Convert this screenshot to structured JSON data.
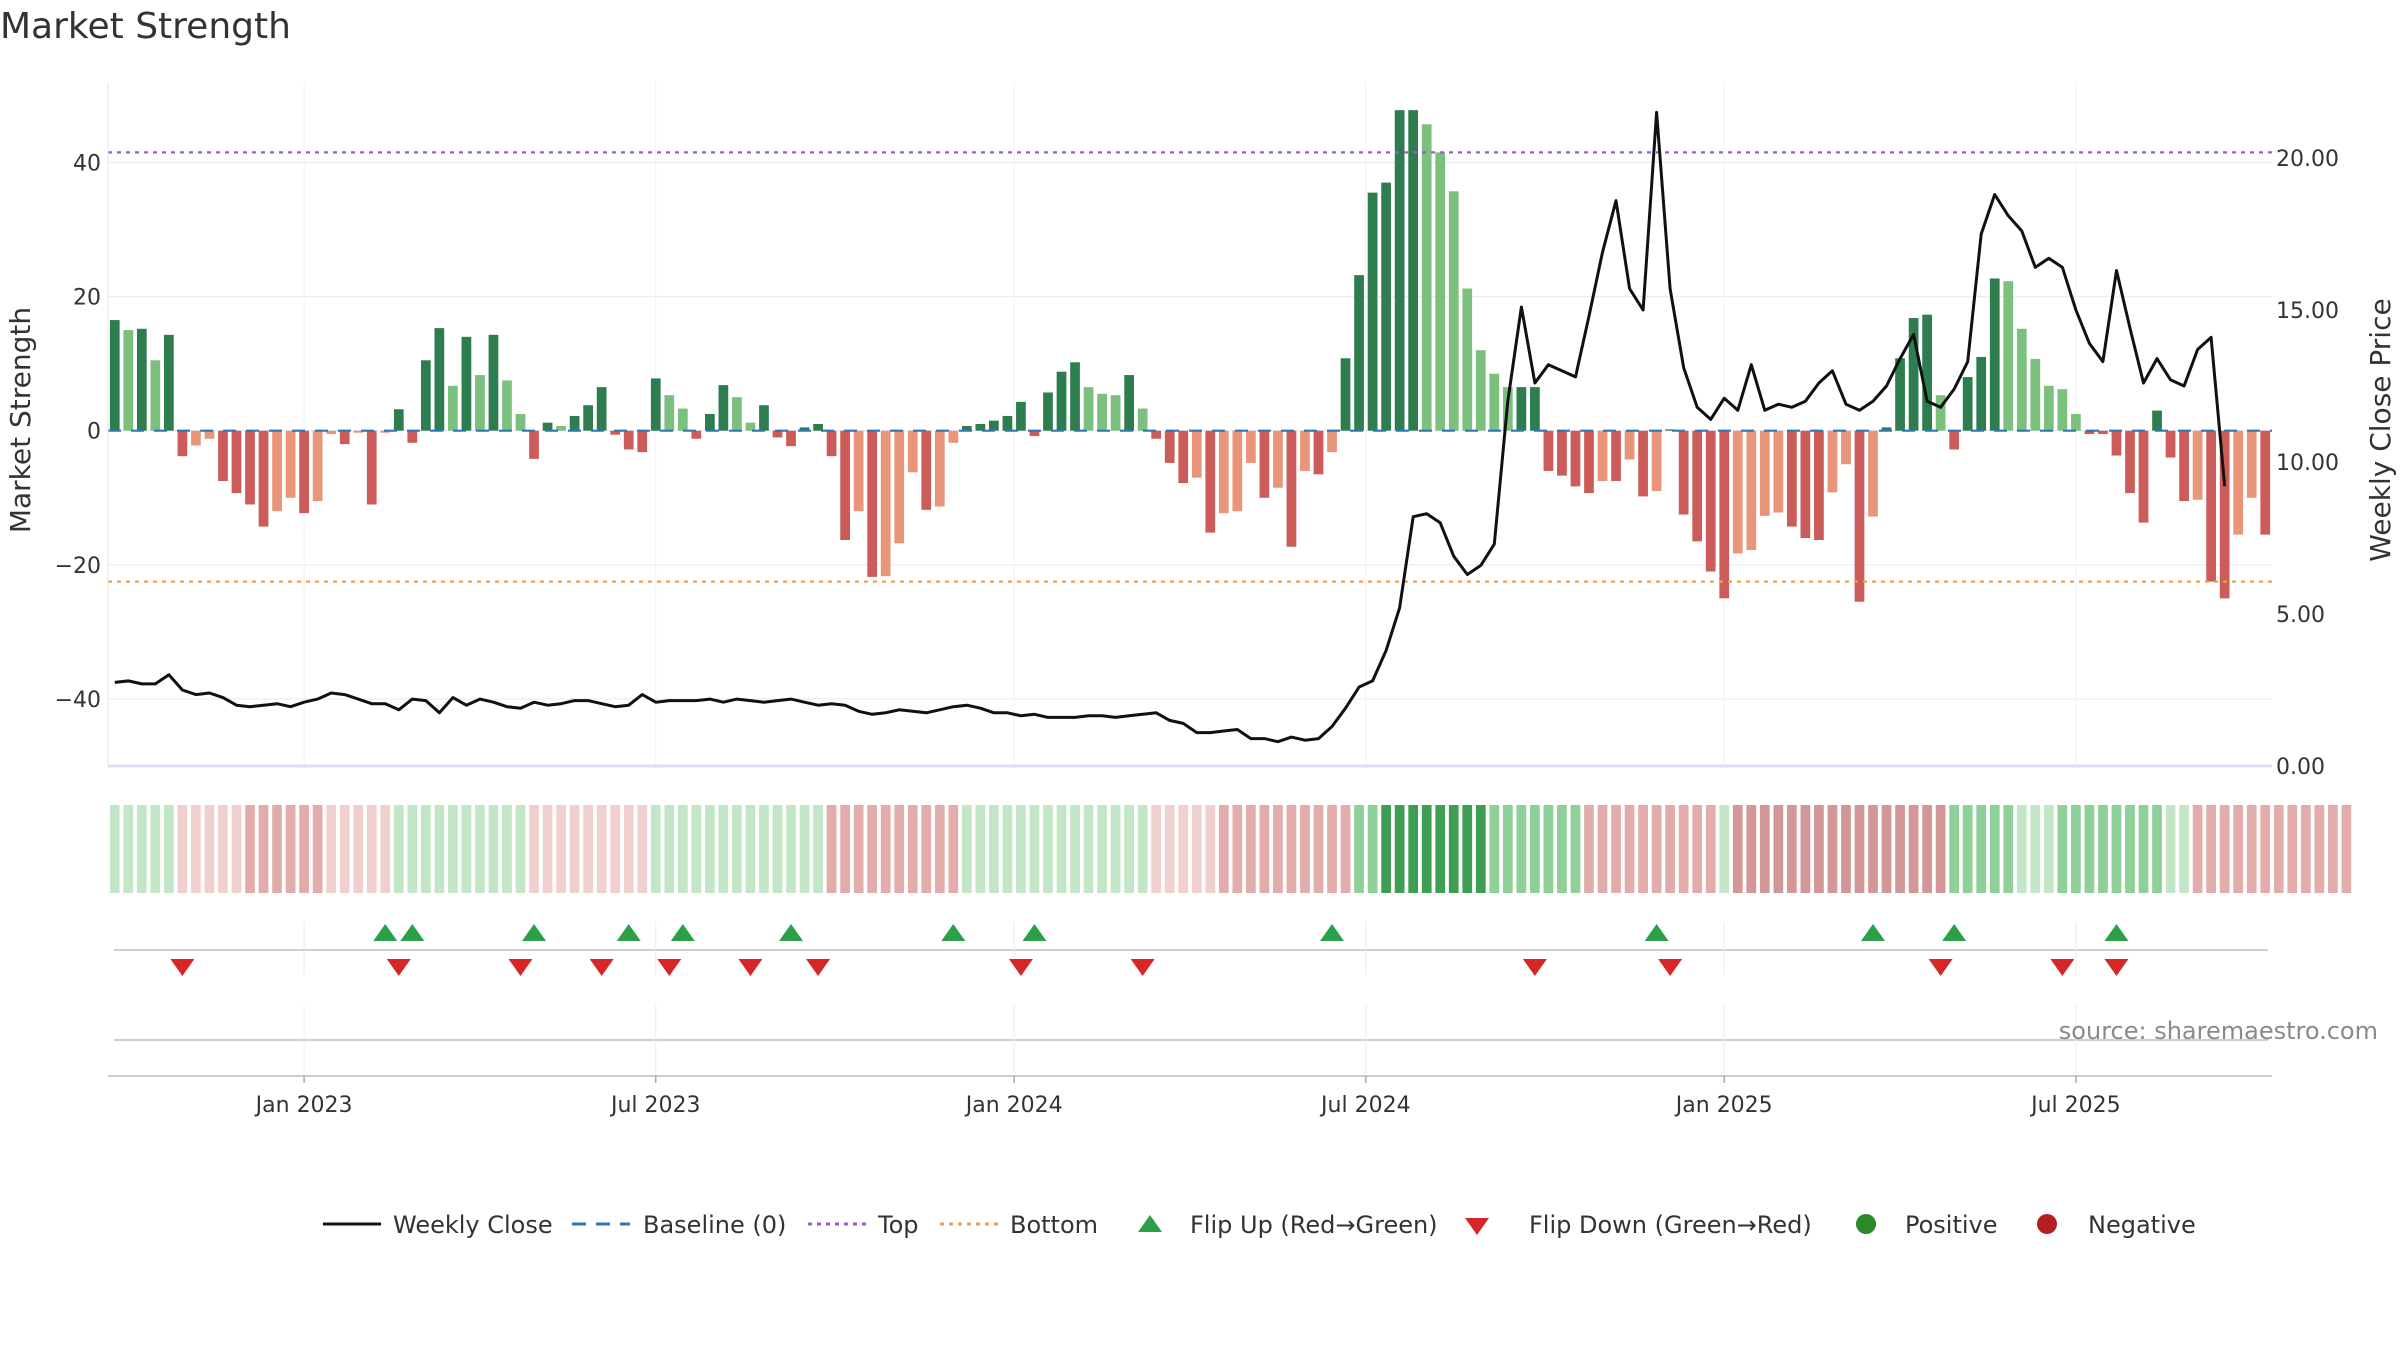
{
  "chart_data": {
    "type": "bar",
    "title": "Market Strength",
    "source": "source: sharemaestro.com",
    "ylabel_left": "Market Strength",
    "ylabel_right": "Weekly Close Price",
    "ylim_left": [
      -50,
      52
    ],
    "ylim_right": [
      0,
      22.5
    ],
    "yticks_left": [
      {
        "v": 40,
        "label": "40"
      },
      {
        "v": 20,
        "label": "20"
      },
      {
        "v": 0,
        "label": "0"
      },
      {
        "v": -20,
        "label": "−20"
      },
      {
        "v": -40,
        "label": "−40"
      }
    ],
    "yticks_right": [
      {
        "v": 20,
        "label": "20.00"
      },
      {
        "v": 15,
        "label": "15.00"
      },
      {
        "v": 10,
        "label": "10.00"
      },
      {
        "v": 5,
        "label": "5.00"
      },
      {
        "v": 0,
        "label": "0.00"
      }
    ],
    "xticks": [
      {
        "i": 14,
        "label": "Jan 2023"
      },
      {
        "i": 40,
        "label": "Jul 2023"
      },
      {
        "i": 66.5,
        "label": "Jan 2024"
      },
      {
        "i": 92.5,
        "label": "Jul 2024"
      },
      {
        "i": 119,
        "label": "Jan 2025"
      },
      {
        "i": 145,
        "label": "Jul 2025"
      }
    ],
    "top_line": 41.5,
    "bottom_line": -22.5,
    "strength": [
      16.5,
      15,
      15.2,
      10.5,
      14.3,
      -3.8,
      -2.2,
      -1.2,
      -7.5,
      -9.3,
      -11,
      -14.3,
      -12,
      -10,
      -12.3,
      -10.5,
      -0.5,
      -2,
      -0.3,
      -11,
      -0.3,
      3.2,
      -1.8,
      10.5,
      15.3,
      6.7,
      14,
      8.3,
      14.3,
      7.5,
      2.5,
      -4.2,
      1.2,
      0.7,
      2.2,
      3.8,
      6.5,
      -0.6,
      -2.8,
      -3.2,
      7.8,
      5.3,
      3.3,
      -1.2,
      2.5,
      6.8,
      5,
      1.2,
      3.8,
      -1,
      -2.3,
      0.5,
      1,
      -3.8,
      -16.3,
      -12,
      -21.8,
      -21.7,
      -16.8,
      -6.2,
      -11.8,
      -11.3,
      -1.8,
      0.7,
      1,
      1.5,
      2.2,
      4.3,
      -0.8,
      5.7,
      8.8,
      10.2,
      6.5,
      5.5,
      5.3,
      8.3,
      3.3,
      -1.2,
      -4.8,
      -7.8,
      -7,
      -15.2,
      -12.3,
      -12,
      -4.8,
      -10,
      -8.5,
      -17.3,
      -6,
      -6.5,
      -3.2,
      10.8,
      23.2,
      35.5,
      37,
      47.8,
      47.8,
      45.7,
      41.5,
      35.7,
      21.2,
      12,
      8.5,
      6.5,
      6.5,
      6.5,
      -6,
      -6.7,
      -8.3,
      -9.3,
      -7.5,
      -7.5,
      -4.3,
      -9.8,
      -9,
      0.2,
      -12.5,
      -16.5,
      -21,
      -25,
      -18.3,
      -17.8,
      -12.7,
      -12.2,
      -14.3,
      -16,
      -16.3,
      -9.2,
      -5,
      -25.5,
      -12.8,
      0.5,
      10.8,
      16.8,
      17.3,
      5.3,
      -2.8,
      8,
      11,
      22.7,
      22.3,
      15.2,
      10.7,
      6.7,
      6.2,
      2.5,
      -0.5,
      -0.5,
      -3.7,
      -9.3,
      -13.7,
      3,
      -4,
      -10.5,
      -10.3,
      -22.5,
      -25,
      -15.5,
      -10,
      -15.5
    ],
    "close": [
      2.75,
      2.8,
      2.7,
      2.7,
      3.0,
      2.5,
      2.35,
      2.4,
      2.25,
      2.0,
      1.95,
      2.0,
      2.05,
      1.95,
      2.1,
      2.2,
      2.4,
      2.35,
      2.2,
      2.05,
      2.05,
      1.85,
      2.2,
      2.15,
      1.75,
      2.25,
      2.0,
      2.2,
      2.1,
      1.95,
      1.9,
      2.1,
      2.0,
      2.05,
      2.15,
      2.15,
      2.05,
      1.95,
      2.0,
      2.35,
      2.1,
      2.15,
      2.15,
      2.15,
      2.2,
      2.1,
      2.2,
      2.15,
      2.1,
      2.15,
      2.2,
      2.1,
      2.0,
      2.05,
      2.0,
      1.8,
      1.7,
      1.75,
      1.85,
      1.8,
      1.75,
      1.85,
      1.95,
      2.0,
      1.9,
      1.75,
      1.75,
      1.65,
      1.7,
      1.6,
      1.6,
      1.6,
      1.65,
      1.65,
      1.6,
      1.65,
      1.7,
      1.75,
      1.5,
      1.4,
      1.1,
      1.1,
      1.15,
      1.2,
      0.9,
      0.9,
      0.8,
      0.95,
      0.85,
      0.9,
      1.3,
      1.9,
      2.6,
      2.8,
      3.8,
      5.2,
      8.2,
      8.3,
      8.0,
      6.9,
      6.3,
      6.6,
      7.3,
      12.0,
      15.1,
      12.6,
      13.2,
      13.0,
      12.8,
      14.8,
      16.9,
      18.6,
      15.7,
      15.0,
      21.5,
      15.7,
      13.1,
      11.8,
      11.4,
      12.1,
      11.7,
      13.2,
      11.7,
      11.9,
      11.8,
      12.0,
      12.6,
      13.0,
      11.9,
      11.7,
      12.0,
      12.5,
      13.4,
      14.2,
      12.0,
      11.8,
      12.4,
      13.3,
      17.5,
      18.8,
      18.1,
      17.6,
      16.4,
      16.7,
      16.4,
      15.0,
      13.9,
      13.3,
      16.3,
      14.4,
      12.6,
      13.4,
      12.7,
      12.5,
      13.7,
      14.1,
      9.2
    ],
    "strip_levels": [
      1,
      1,
      1,
      1,
      1,
      -1,
      -1,
      -1,
      -1,
      -1,
      -2,
      -2,
      -2,
      -2,
      -2,
      -2,
      -1,
      -1,
      -1,
      -1,
      -1,
      1,
      1,
      1,
      1,
      1,
      1,
      1,
      1,
      1,
      1,
      -1,
      -1,
      -1,
      -1,
      -1,
      -1,
      -1,
      -1,
      -1,
      1,
      1,
      1,
      1,
      1,
      1,
      1,
      1,
      1,
      1,
      1,
      1,
      1,
      -2,
      -2,
      -2,
      -2,
      -2,
      -2,
      -2,
      -2,
      -2,
      -2,
      1,
      1,
      1,
      1,
      1,
      1,
      1,
      1,
      1,
      1,
      1,
      1,
      1,
      1,
      -1,
      -1,
      -1,
      -1,
      -1,
      -2,
      -2,
      -2,
      -2,
      -2,
      -2,
      -2,
      -2,
      -2,
      -2,
      2,
      2,
      3,
      3,
      3,
      3,
      3,
      3,
      3,
      3,
      2,
      2,
      2,
      2,
      2,
      2,
      2,
      -2,
      -2,
      -2,
      -2,
      -2,
      -2,
      -2,
      -2,
      -2,
      -2,
      1,
      -3,
      -3,
      -3,
      -3,
      -3,
      -3,
      -3,
      -3,
      -3,
      -3,
      -3,
      -3,
      -3,
      -3,
      -3,
      -3,
      2,
      2,
      2,
      2,
      2,
      1,
      1,
      1,
      2,
      2,
      2,
      2,
      2,
      2,
      2,
      2,
      1,
      1,
      -2,
      -2,
      -2,
      -2,
      -2,
      -2,
      -2,
      -2,
      -2,
      -2,
      -2,
      -2
    ],
    "flip_up": [
      20,
      22,
      31,
      38,
      42,
      50,
      62,
      68,
      90,
      114,
      130,
      136,
      148
    ],
    "flip_down": [
      5,
      21,
      30,
      36,
      41,
      47,
      52,
      67,
      76,
      105,
      115,
      135,
      144,
      148
    ],
    "legend": [
      "Weekly Close",
      "Baseline (0)",
      "Top",
      "Bottom",
      "Flip Up (Red→Green)",
      "Flip Down (Green→Red)",
      "Positive",
      "Negative"
    ],
    "colors": {
      "pos_dark": "#2e7d4f",
      "pos_light": "#7cc07e",
      "neg_dark": "#cc5c5a",
      "neg_light": "#e9957a",
      "line": "#111111",
      "baseline": "#2e77b5",
      "top": "#9a5bd0",
      "bottom": "#f0a050",
      "up": "#2ca048",
      "down": "#d62728",
      "positive": "#2a8a2a",
      "negative": "#b22024"
    }
  }
}
